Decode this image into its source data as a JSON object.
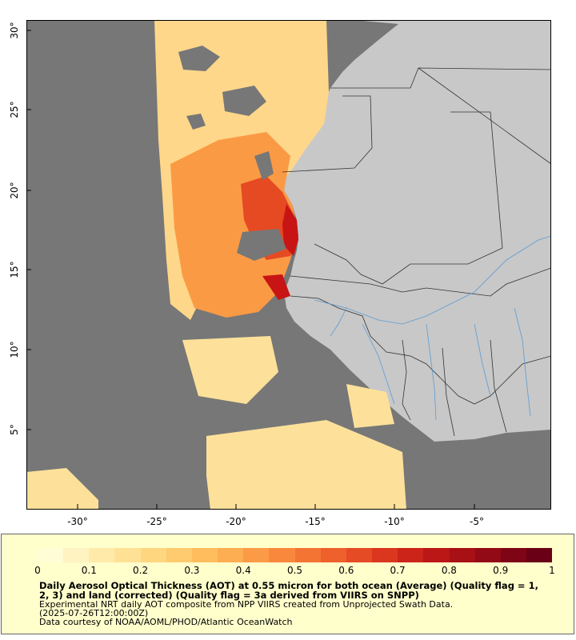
{
  "map": {
    "x_ticks": [
      "-30°",
      "-25°",
      "-20°",
      "-15°",
      "-10°",
      "-5°"
    ],
    "y_ticks": [
      "30°",
      "25°",
      "20°",
      "15°",
      "10°",
      "5°"
    ],
    "colors": {
      "no_data": "#777777",
      "land": "#c8c8c8",
      "borders": "#333333",
      "rivers": "#5a9bd5",
      "aot_low": "#ffe28a",
      "aot_mid": "#fb9a45",
      "aot_high": "#d7191c"
    }
  },
  "legend": {
    "colorbar_ticks": [
      "0",
      "0.1",
      "0.2",
      "0.3",
      "0.4",
      "0.5",
      "0.6",
      "0.7",
      "0.8",
      "0.9",
      "1"
    ],
    "colorbar_colors": [
      "#fffcd6",
      "#fff3c2",
      "#ffeaaa",
      "#ffe196",
      "#ffd680",
      "#ffcb6e",
      "#ffbd5e",
      "#fdad52",
      "#fc9b47",
      "#f9883d",
      "#f47434",
      "#ee602c",
      "#e54b24",
      "#da371e",
      "#cc2419",
      "#bb1717",
      "#a71015",
      "#920a15",
      "#7d0516",
      "#6a0016"
    ],
    "title": "Daily Aerosol Optical Thickness (AOT) at 0.55 micron for both ocean (Average) (Quality flag = 1, 2, 3) and land (corrected) (Quality flag = 3a derived from VIIRS on SNPP)",
    "subtitle": "Experimental NRT daily AOT composite from NPP VIIRS created from Unprojected Swath Data.",
    "timestamp": "(2025-07-26T12:00:00Z)",
    "credit": "Data courtesy of NOAA/AOML/PHOD/Atlantic OceanWatch"
  }
}
